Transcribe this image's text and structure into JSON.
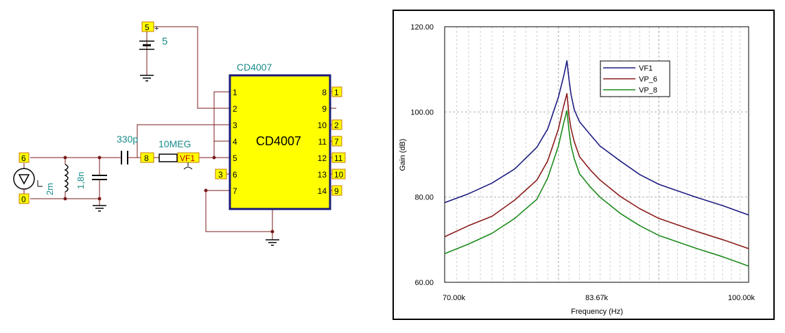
{
  "schematic": {
    "chip_label": "CD4007",
    "chip_body_text": "CD4007",
    "left_pins": [
      "1",
      "2",
      "3",
      "4",
      "5",
      "6",
      "7"
    ],
    "right_pins": [
      "8",
      "9",
      "10",
      "11",
      "12",
      "13",
      "14"
    ],
    "right_node_tags": [
      "1",
      "",
      "2",
      "7",
      "11",
      "10",
      "9"
    ],
    "node_tag_3": "3",
    "supply_tag": "5",
    "supply_plus": "+",
    "battery_value": "5",
    "node_tag_6": "6",
    "node_tag_0": "0",
    "node_tag_8": "8",
    "inductor_value": "2m",
    "shunt_cap_value": "1,8n",
    "series_cap_value": "330p",
    "resistor_value": "10MEG",
    "probe_tag": "VF1",
    "colors": {
      "wire": "#7a1a1a",
      "chip_fill": "#ffff00",
      "chip_border": "#1a1a7a",
      "tag_fill": "#ffff00",
      "tag_border": "#c87800",
      "value_text": "#1a8a8a",
      "probe_text": "#c00000"
    }
  },
  "chart_data": {
    "type": "line",
    "title": "",
    "xlabel": "Frequency (Hz)",
    "ylabel": "Gain (dB)",
    "x_scale": "log",
    "xlim": [
      70000,
      100000
    ],
    "ylim": [
      60,
      120
    ],
    "x_tick_labels": [
      "70.00k",
      "83.67k",
      "100.00k"
    ],
    "y_tick_labels": [
      "60.00",
      "80.00",
      "100.00",
      "120.00"
    ],
    "grid": true,
    "legend_position": "top-right",
    "series": [
      {
        "name": "VF1",
        "color": "#1a1a80",
        "x": [
          70000,
          72000,
          74000,
          76000,
          78000,
          79000,
          80000,
          80500,
          80800,
          81000,
          81200,
          81500,
          82000,
          83000,
          84000,
          86000,
          88000,
          90000,
          94000,
          97000,
          100000
        ],
        "y": [
          78.7,
          80.8,
          83.3,
          86.6,
          91.7,
          96.0,
          103.5,
          108.5,
          112.0,
          107.5,
          104.0,
          100.5,
          97.7,
          94.8,
          92.0,
          88.5,
          85.3,
          83.0,
          80.0,
          78.0,
          75.8
        ]
      },
      {
        "name": "VP_6",
        "color": "#8b1a1a",
        "x": [
          70000,
          72000,
          74000,
          76000,
          78000,
          79000,
          80000,
          80500,
          80800,
          81000,
          81200,
          81500,
          82000,
          83000,
          84000,
          86000,
          88000,
          90000,
          94000,
          97000,
          100000
        ],
        "y": [
          70.7,
          73.3,
          75.5,
          79.3,
          84.0,
          88.5,
          96.0,
          101.5,
          104.3,
          99.0,
          96.0,
          93.0,
          89.5,
          86.5,
          84.0,
          80.2,
          77.3,
          75.0,
          72.0,
          70.0,
          67.9
        ]
      },
      {
        "name": "VP_8",
        "color": "#1a8a1a",
        "x": [
          70000,
          72000,
          74000,
          76000,
          78000,
          79000,
          80000,
          80500,
          80800,
          81000,
          81200,
          81500,
          82000,
          83000,
          84000,
          86000,
          88000,
          90000,
          94000,
          97000,
          100000
        ],
        "y": [
          66.7,
          69.0,
          71.5,
          75.0,
          79.5,
          84.5,
          92.0,
          97.5,
          100.3,
          95.5,
          92.0,
          89.0,
          85.5,
          82.5,
          80.0,
          76.2,
          73.3,
          71.0,
          68.0,
          66.0,
          63.8
        ]
      }
    ]
  }
}
